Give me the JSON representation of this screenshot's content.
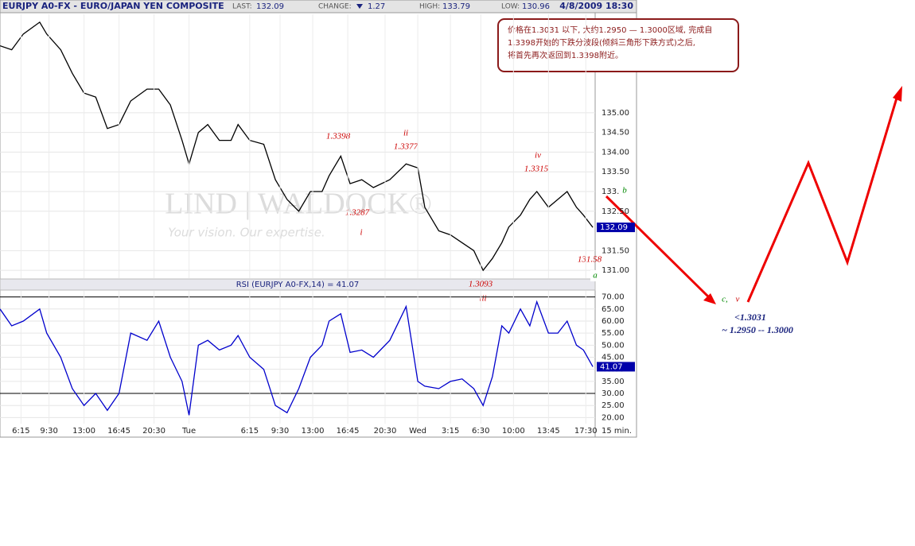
{
  "header": {
    "symbol": "EURJPY A0-FX - EURO/JAPAN YEN COMPOSITE",
    "last_label": "LAST:",
    "last": "132.09",
    "change_label": "CHANGE:",
    "change": "1.27",
    "high_label": "HIGH:",
    "high": "133.79",
    "low_label": "LOW:",
    "low": "130.96",
    "date": "4/8/2009 18:30"
  },
  "watermark": {
    "brand": "LIND | WALDOCK®",
    "slogan": "Your vision. Our expertise."
  },
  "note": {
    "lines": [
      "价格在1.3031 以下, 大约1.2950 — 1.3000区域, 完成自",
      "1.3398开始的下跌分波段(倾斜三角形下跌方式)之后,",
      "将首先再次返回到1.3398附近。"
    ]
  },
  "chart_data": [
    {
      "type": "line",
      "color": "#000000",
      "xlim": [
        0,
        255
      ],
      "ylim": [
        130.8,
        137.5
      ],
      "yticks": [
        {
          "value": 131,
          "label": "131.00"
        },
        {
          "value": 131.5,
          "label": "131.50"
        },
        {
          "value": 132.5,
          "label": "132.50"
        },
        {
          "value": 133,
          "label": "133.0"
        },
        {
          "value": 133.5,
          "label": "133.50"
        },
        {
          "value": 134,
          "label": "134.00"
        },
        {
          "value": 134.5,
          "label": "134.50"
        },
        {
          "value": 135,
          "label": "135.00"
        }
      ],
      "grid": true,
      "x": [
        0,
        5,
        10,
        17,
        20,
        26,
        31,
        36,
        41,
        46,
        51,
        56,
        63,
        68,
        73,
        78,
        81,
        85,
        89,
        94,
        99,
        102,
        107,
        113,
        118,
        123,
        128,
        133,
        138,
        141,
        146,
        150,
        155,
        160,
        167,
        174,
        179,
        182,
        188,
        193,
        198,
        203,
        207,
        211,
        215,
        218,
        223,
        227,
        230,
        235,
        239,
        243,
        247,
        250,
        254
      ],
      "values": [
        136.7,
        136.6,
        137.0,
        137.3,
        137.0,
        136.6,
        136.0,
        135.5,
        135.4,
        134.6,
        134.7,
        135.3,
        135.6,
        135.6,
        135.2,
        134.3,
        133.7,
        134.5,
        134.7,
        134.3,
        134.3,
        134.7,
        134.3,
        134.2,
        133.3,
        132.8,
        132.5,
        133.0,
        133.0,
        133.4,
        133.9,
        133.2,
        133.3,
        133.1,
        133.3,
        133.7,
        133.6,
        132.6,
        132.0,
        131.9,
        131.7,
        131.5,
        131.0,
        131.3,
        131.7,
        132.1,
        132.4,
        132.8,
        133.0,
        132.6,
        132.8,
        133.0,
        132.6,
        132.4,
        132.09
      ],
      "annotations": [
        "1.3398",
        "ii",
        "1.3377",
        "iv",
        "1.3315",
        "b",
        "1.3287",
        "i",
        "131.58",
        "a",
        "1.3093",
        "iii",
        "c,",
        "v",
        "<1.3031",
        "~ 1.2950 -- 1.3000"
      ]
    },
    {
      "type": "line",
      "title": "RSI (EURJPY A0-FX,14) = 41.07",
      "last_label": "41.07",
      "color": "#0000cc",
      "xlim": [
        0,
        255
      ],
      "ylim": [
        17.5,
        72.5
      ],
      "yticks": [
        {
          "value": 20,
          "label": "20.00"
        },
        {
          "value": 25,
          "label": "25.00"
        },
        {
          "value": 30,
          "label": "30.00"
        },
        {
          "value": 35,
          "label": "35.00"
        },
        {
          "value": 40,
          "label": "40.00"
        },
        {
          "value": 45,
          "label": "45.00"
        },
        {
          "value": 50,
          "label": "50.00"
        },
        {
          "value": 55,
          "label": "55.00"
        },
        {
          "value": 60,
          "label": "60.00"
        },
        {
          "value": 65,
          "label": "65.00"
        },
        {
          "value": 70,
          "label": "70.00"
        }
      ],
      "levels": [
        30,
        70
      ],
      "xticks": [
        {
          "value": 9,
          "label": "6:15"
        },
        {
          "value": 21,
          "label": "9:30"
        },
        {
          "value": 36,
          "label": "13:00"
        },
        {
          "value": 51,
          "label": "16:45"
        },
        {
          "value": 66,
          "label": "20:30"
        },
        {
          "value": 81,
          "label": "Tue"
        },
        {
          "value": 107,
          "label": "6:15"
        },
        {
          "value": 120,
          "label": "9:30"
        },
        {
          "value": 134,
          "label": "13:00"
        },
        {
          "value": 149,
          "label": "16:45"
        },
        {
          "value": 165,
          "label": "20:30"
        },
        {
          "value": 179,
          "label": "Wed"
        },
        {
          "value": 193,
          "label": "3:15"
        },
        {
          "value": 206,
          "label": "6:30"
        },
        {
          "value": 220,
          "label": "10:00"
        },
        {
          "value": 235,
          "label": "13:45"
        },
        {
          "value": 251,
          "label": "17:30"
        }
      ],
      "interval": "15 min.",
      "x": [
        0,
        5,
        10,
        17,
        20,
        26,
        31,
        36,
        41,
        46,
        51,
        56,
        63,
        68,
        73,
        78,
        81,
        85,
        89,
        94,
        99,
        102,
        107,
        113,
        118,
        123,
        128,
        133,
        138,
        141,
        146,
        150,
        155,
        160,
        167,
        174,
        179,
        182,
        188,
        193,
        198,
        203,
        207,
        211,
        215,
        218,
        223,
        227,
        230,
        235,
        239,
        243,
        247,
        250,
        254
      ],
      "values": [
        65,
        58,
        60,
        65,
        55,
        45,
        32,
        25,
        30,
        23,
        30,
        55,
        52,
        60,
        45,
        35,
        21,
        50,
        52,
        48,
        50,
        54,
        45,
        40,
        25,
        22,
        32,
        45,
        50,
        60,
        63,
        47,
        48,
        45,
        52,
        66,
        35,
        33,
        32,
        35,
        36,
        32,
        25,
        37,
        58,
        55,
        65,
        58,
        68,
        55,
        55,
        60,
        50,
        48,
        41.07
      ]
    }
  ]
}
